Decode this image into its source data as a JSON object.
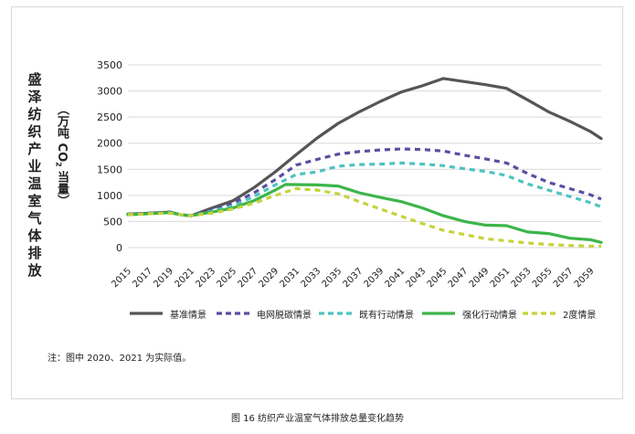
{
  "ylabel": {
    "main": "盛泽纺织产业温室气体排放",
    "unit_prefix": "（万吨 CO",
    "unit_sub": "2",
    "unit_suffix": " 当量）"
  },
  "note": "注：图中 2020、2021 为实际值。",
  "caption": "图 16 纺织产业温室气体排放总量变化趋势",
  "chart_data": {
    "type": "line",
    "xlabel": "",
    "ylabel": "盛泽纺织产业温室气体排放（万吨 CO2 当量）",
    "xlim": [
      2015,
      2060
    ],
    "ylim": [
      0,
      3500
    ],
    "yticks": [
      0,
      500,
      1000,
      1500,
      2000,
      2500,
      3000,
      3500
    ],
    "xticks": [
      2015,
      2017,
      2019,
      2021,
      2023,
      2025,
      2027,
      2029,
      2031,
      2033,
      2035,
      2037,
      2039,
      2041,
      2043,
      2045,
      2047,
      2049,
      2051,
      2053,
      2055,
      2057,
      2059
    ],
    "grid": "horizontal",
    "legend_position": "bottom",
    "series": [
      {
        "name": "基准情景",
        "color": "#555555",
        "style": "solid",
        "points": [
          [
            2015,
            640
          ],
          [
            2017,
            660
          ],
          [
            2019,
            680
          ],
          [
            2020,
            630
          ],
          [
            2021,
            610
          ],
          [
            2023,
            760
          ],
          [
            2025,
            900
          ],
          [
            2027,
            1150
          ],
          [
            2029,
            1450
          ],
          [
            2031,
            1780
          ],
          [
            2033,
            2100
          ],
          [
            2035,
            2380
          ],
          [
            2037,
            2600
          ],
          [
            2039,
            2800
          ],
          [
            2041,
            2980
          ],
          [
            2043,
            3100
          ],
          [
            2045,
            3240
          ],
          [
            2047,
            3180
          ],
          [
            2049,
            3120
          ],
          [
            2051,
            3050
          ],
          [
            2053,
            2830
          ],
          [
            2055,
            2600
          ],
          [
            2057,
            2420
          ],
          [
            2059,
            2220
          ],
          [
            2060,
            2090
          ]
        ]
      },
      {
        "name": "电网脱碳情景",
        "color": "#5b4ea0",
        "style": "dashed",
        "points": [
          [
            2015,
            640
          ],
          [
            2017,
            660
          ],
          [
            2019,
            680
          ],
          [
            2020,
            630
          ],
          [
            2021,
            610
          ],
          [
            2023,
            720
          ],
          [
            2025,
            850
          ],
          [
            2027,
            1050
          ],
          [
            2029,
            1300
          ],
          [
            2031,
            1580
          ],
          [
            2033,
            1690
          ],
          [
            2035,
            1790
          ],
          [
            2037,
            1840
          ],
          [
            2039,
            1870
          ],
          [
            2041,
            1890
          ],
          [
            2043,
            1880
          ],
          [
            2045,
            1850
          ],
          [
            2047,
            1770
          ],
          [
            2049,
            1700
          ],
          [
            2051,
            1620
          ],
          [
            2053,
            1420
          ],
          [
            2055,
            1250
          ],
          [
            2057,
            1130
          ],
          [
            2059,
            1010
          ],
          [
            2060,
            930
          ]
        ]
      },
      {
        "name": "既有行动情景",
        "color": "#4fc3c0",
        "style": "dashed",
        "points": [
          [
            2015,
            630
          ],
          [
            2017,
            650
          ],
          [
            2019,
            670
          ],
          [
            2020,
            630
          ],
          [
            2021,
            610
          ],
          [
            2023,
            700
          ],
          [
            2025,
            800
          ],
          [
            2027,
            980
          ],
          [
            2029,
            1200
          ],
          [
            2031,
            1400
          ],
          [
            2033,
            1450
          ],
          [
            2035,
            1560
          ],
          [
            2037,
            1590
          ],
          [
            2039,
            1600
          ],
          [
            2041,
            1620
          ],
          [
            2043,
            1600
          ],
          [
            2045,
            1570
          ],
          [
            2047,
            1510
          ],
          [
            2049,
            1460
          ],
          [
            2051,
            1380
          ],
          [
            2053,
            1220
          ],
          [
            2055,
            1100
          ],
          [
            2057,
            980
          ],
          [
            2059,
            860
          ],
          [
            2060,
            780
          ]
        ]
      },
      {
        "name": "强化行动情景",
        "color": "#3cb54a",
        "style": "solid",
        "points": [
          [
            2015,
            630
          ],
          [
            2017,
            650
          ],
          [
            2019,
            670
          ],
          [
            2020,
            630
          ],
          [
            2021,
            610
          ],
          [
            2023,
            680
          ],
          [
            2025,
            760
          ],
          [
            2027,
            900
          ],
          [
            2029,
            1100
          ],
          [
            2030,
            1210
          ],
          [
            2033,
            1200
          ],
          [
            2035,
            1180
          ],
          [
            2037,
            1050
          ],
          [
            2039,
            960
          ],
          [
            2041,
            880
          ],
          [
            2043,
            760
          ],
          [
            2045,
            610
          ],
          [
            2047,
            500
          ],
          [
            2049,
            430
          ],
          [
            2051,
            420
          ],
          [
            2053,
            300
          ],
          [
            2055,
            270
          ],
          [
            2057,
            180
          ],
          [
            2059,
            150
          ],
          [
            2060,
            100
          ]
        ]
      },
      {
        "name": "2度情景",
        "color": "#c5d33b",
        "style": "dashed",
        "points": [
          [
            2015,
            630
          ],
          [
            2017,
            650
          ],
          [
            2019,
            660
          ],
          [
            2020,
            630
          ],
          [
            2021,
            610
          ],
          [
            2023,
            660
          ],
          [
            2025,
            740
          ],
          [
            2027,
            850
          ],
          [
            2029,
            1000
          ],
          [
            2031,
            1130
          ],
          [
            2033,
            1100
          ],
          [
            2035,
            1030
          ],
          [
            2037,
            880
          ],
          [
            2039,
            740
          ],
          [
            2041,
            600
          ],
          [
            2043,
            460
          ],
          [
            2045,
            330
          ],
          [
            2047,
            250
          ],
          [
            2049,
            170
          ],
          [
            2051,
            130
          ],
          [
            2053,
            90
          ],
          [
            2055,
            60
          ],
          [
            2057,
            40
          ],
          [
            2059,
            30
          ],
          [
            2060,
            30
          ]
        ]
      }
    ]
  }
}
